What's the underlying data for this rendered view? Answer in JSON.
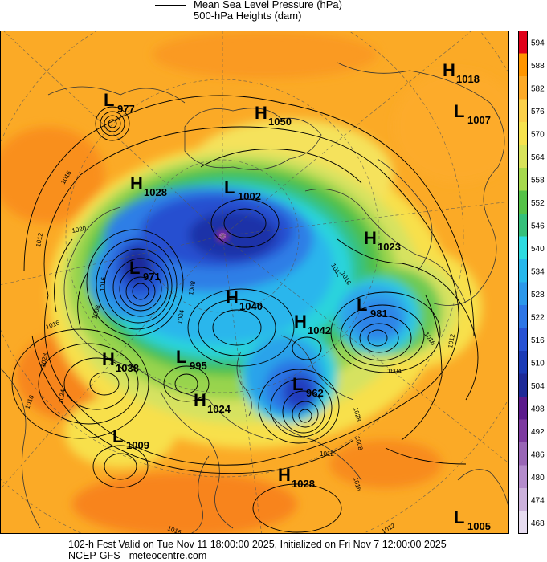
{
  "legend": {
    "line_label_1": "Mean Sea Level Pressure (hPa)",
    "line_label_2": "500-hPa Heights (dam)"
  },
  "colorbar": {
    "levels": [
      "594",
      "588",
      "582",
      "576",
      "570",
      "564",
      "558",
      "552",
      "546",
      "540",
      "534",
      "528",
      "522",
      "516",
      "510",
      "504",
      "498",
      "492",
      "486",
      "480",
      "474",
      "468"
    ],
    "colors": [
      "#e0001a",
      "#ff9500",
      "#fdaa28",
      "#fbd04a",
      "#f6e24e",
      "#d8e35a",
      "#a6d94e",
      "#55c248",
      "#35c07a",
      "#2ddbe0",
      "#28b8ec",
      "#2c98ea",
      "#2d76e6",
      "#2852d4",
      "#1b3bb6",
      "#1e2a98",
      "#5b1a8c",
      "#7d3aa0",
      "#9966b6",
      "#b48ccc",
      "#ccb2dc",
      "#e6dcf0"
    ]
  },
  "systems": [
    {
      "type": "H",
      "value": "1018"
    },
    {
      "type": "L",
      "value": "977"
    },
    {
      "type": "H",
      "value": "1050"
    },
    {
      "type": "L",
      "value": "1007"
    },
    {
      "type": "H",
      "value": "1028"
    },
    {
      "type": "L",
      "value": "1002"
    },
    {
      "type": "H",
      "value": "1023"
    },
    {
      "type": "L",
      "value": "971"
    },
    {
      "type": "H",
      "value": "1040"
    },
    {
      "type": "L",
      "value": "981"
    },
    {
      "type": "H",
      "value": "1042"
    },
    {
      "type": "H",
      "value": "1038"
    },
    {
      "type": "L",
      "value": "995"
    },
    {
      "type": "L",
      "value": "962"
    },
    {
      "type": "H",
      "value": "1024"
    },
    {
      "type": "L",
      "value": "1009"
    },
    {
      "type": "H",
      "value": "1028"
    },
    {
      "type": "L",
      "value": "1005"
    }
  ],
  "isobar_labels": [
    "1016",
    "1012",
    "1016",
    "1028",
    "1024",
    "1016",
    "1020",
    "1016",
    "1008",
    "1004",
    "1012",
    "1016",
    "1012",
    "1016",
    "1028",
    "1008",
    "1012",
    "1016",
    "1012",
    "1016",
    "1008",
    "1004"
  ],
  "footer": {
    "line1": "102-h Fcst Valid on Tue Nov 11 18:00:00 2025, Initialized on Fri Nov  7 12:00:00 2025",
    "line2": "NCEP-GFS  -  meteocentre.com"
  }
}
